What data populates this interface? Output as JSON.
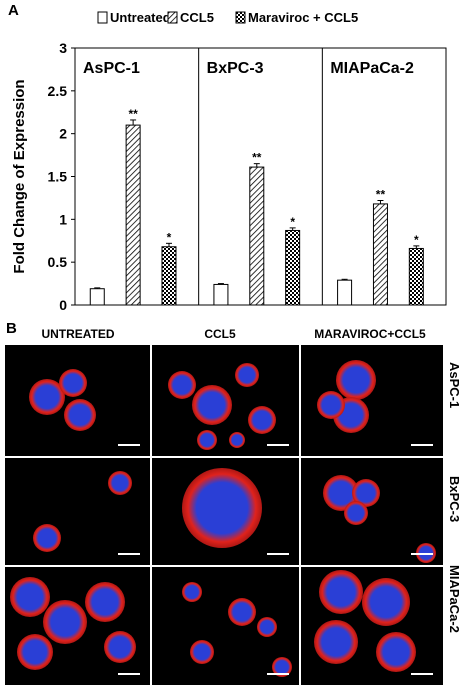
{
  "panel_a_label": "A",
  "panel_b_label": "B",
  "chart_data": {
    "type": "bar",
    "ylabel": "Fold Change of Expression",
    "ylim": [
      0,
      3
    ],
    "yticks": [
      "0",
      "0.5",
      "1",
      "1.5",
      "2",
      "2.5",
      "3"
    ],
    "legend": [
      {
        "name": "Untreated",
        "pattern": "solid-white"
      },
      {
        "name": "CCL5",
        "pattern": "diagonal-hatch"
      },
      {
        "name": "Maraviroc + CCL5",
        "pattern": "checker"
      }
    ],
    "legend_placement": "top",
    "panels": [
      {
        "title": "AsPC-1",
        "values": [
          0.19,
          2.1,
          0.68
        ],
        "errors": [
          0.01,
          0.06,
          0.04
        ],
        "significance": [
          "",
          "**",
          "*"
        ]
      },
      {
        "title": "BxPC-3",
        "values": [
          0.24,
          1.61,
          0.87
        ],
        "errors": [
          0.01,
          0.04,
          0.03
        ],
        "significance": [
          "",
          "**",
          "*"
        ]
      },
      {
        "title": "MIAPaCa-2",
        "values": [
          0.29,
          1.18,
          0.66
        ],
        "errors": [
          0.01,
          0.04,
          0.03
        ],
        "significance": [
          "",
          "**",
          "*"
        ]
      }
    ]
  },
  "micrographs": {
    "columns": [
      "UNTREATED",
      "CCL5",
      "MARAVIROC+CCL5"
    ],
    "rows": [
      "AsPC-1",
      "BxPC-3",
      "MIAPaCa-2"
    ],
    "colors": {
      "membrane": "#e0221c",
      "nucleus": "#2a3fd6",
      "background": "#000000"
    }
  }
}
